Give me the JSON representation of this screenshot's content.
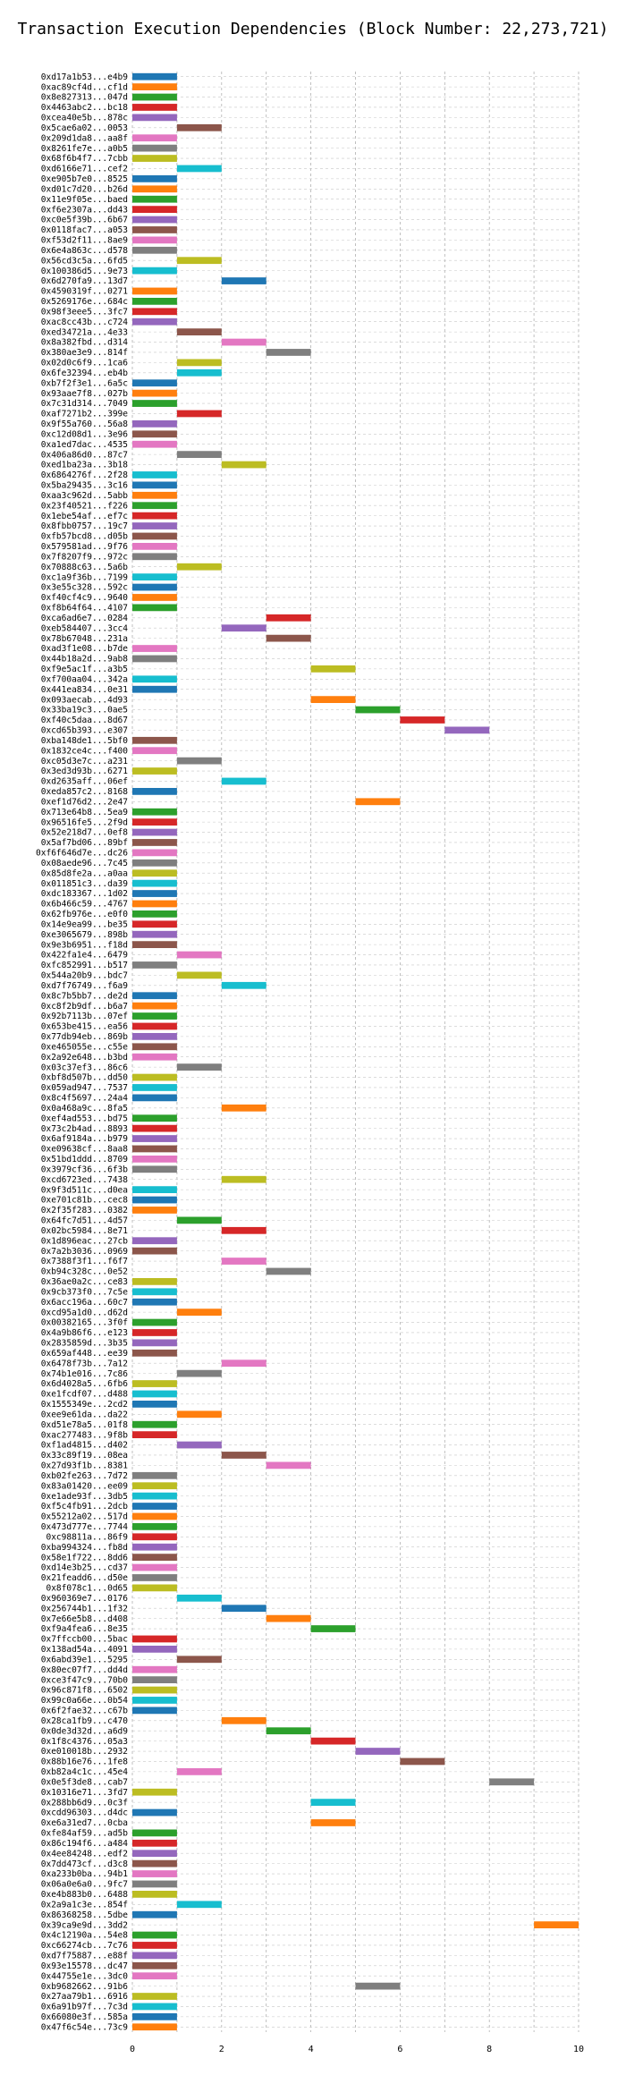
{
  "chart_data": {
    "type": "bar",
    "orientation": "horizontal",
    "title": "Transaction Execution Dependencies (Block Number: 22,273,721)",
    "xlim": [
      0,
      10
    ],
    "x_ticks": [
      0,
      2,
      4,
      6,
      8,
      10
    ],
    "grid": true,
    "colors": [
      "#1f77b4",
      "#ff7f0e",
      "#2ca02c",
      "#d62728",
      "#9467bd",
      "#8c564b",
      "#e377c2",
      "#7f7f7f",
      "#bcbd22",
      "#17becf"
    ],
    "categories": [
      "0xd17a1b53...e4b9",
      "0xac89cf4d...cf1d",
      "0x8e827313...047d",
      "0x4463abc2...bc18",
      "0xcea40e5b...878c",
      "0x5cae6a02...0053",
      "0x209d1da8...aa8f",
      "0x8261fe7e...a0b5",
      "0x68f6b4f7...7cbb",
      "0xd6166e71...cef2",
      "0xe905b7e0...8525",
      "0xd01c7d20...b26d",
      "0x11e9f05e...baed",
      "0xf6e2307a...dd43",
      "0xc0e5f39b...6b67",
      "0x0118fac7...a053",
      "0xf53d2f11...8ae9",
      "0x6e4a863c...d578",
      "0x56cd3c5a...6fd5",
      "0x100386d5...9e73",
      "0x6d270fa9...13d7",
      "0x4590319f...0271",
      "0x5269176e...684c",
      "0x98f3eee5...3fc7",
      "0xac8cc43b...c724",
      "0xed34721a...4e33",
      "0x8a382fbd...d314",
      "0x380ae3e9...814f",
      "0x02d0c6f9...1ca6",
      "0x6fe32394...eb4b",
      "0xb7f2f3e1...6a5c",
      "0x93aae7f8...027b",
      "0x7c31d314...7049",
      "0xaf7271b2...399e",
      "0x9f55a760...56a8",
      "0xc12d08d1...3e96",
      "0xa1ed7dac...4535",
      "0x406a86d0...87c7",
      "0xed1ba23a...3b18",
      "0x6864276f...2f28",
      "0x5ba29435...3c16",
      "0xaa3c962d...5abb",
      "0x23f40521...f226",
      "0x1ebe54af...ef7c",
      "0x8fbb0757...19c7",
      "0xfb57bcd8...d05b",
      "0x579581ad...9f76",
      "0x7f8207f9...972c",
      "0x70888c63...5a6b",
      "0xc1a9f36b...7199",
      "0x3e55c328...592c",
      "0xf40cf4c9...9640",
      "0xf8b64f64...4107",
      "0xca6ad6e7...0284",
      "0xeb584407...3cc4",
      "0x78b67048...231a",
      "0xad3f1e08...b7de",
      "0x44b18a2d...9ab8",
      "0xf9e5ac1f...a3b5",
      "0xf700aa04...342a",
      "0x441ea834...0e31",
      "0x093aecab...4d93",
      "0x33ba19c3...0ae5",
      "0xf40c5daa...8d67",
      "0xcd65b393...e307",
      "0xba148de1...5bf0",
      "0x1832ce4c...f400",
      "0xc05d3e7c...a231",
      "0x3ed3d93b...6271",
      "0xd2635aff...06ef",
      "0xeda857c2...8168",
      "0xef1d76d2...2e47",
      "0x713e64b8...5ea9",
      "0x96516fe5...2f9d",
      "0x52e218d7...0ef8",
      "0x5af7bd06...89bf",
      "0xf6f646d7e...dc26",
      "0x08aede96...7c45",
      "0x85d8fe2a...a0aa",
      "0x011851c3...da39",
      "0xdc183367...1d02",
      "0x6b466c59...4767",
      "0x62fb976e...e0f0",
      "0x14e9ea99...be35",
      "0xe3065679...898b",
      "0x9e3b6951...f18d",
      "0x422fa1e4...6479",
      "0xfc852991...b517",
      "0x544a20b9...bdc7",
      "0xd7f76749...f6a9",
      "0x8c7b5bb7...de2d",
      "0xc8f2b9df...b6a7",
      "0x92b7113b...07ef",
      "0x653be415...ea56",
      "0x77db94eb...869b",
      "0xe465055e...c55e",
      "0x2a92e648...b3bd",
      "0x03c37ef3...86c6",
      "0xbf8d507b...dd50",
      "0x059ad947...7537",
      "0x8c4f5697...24a4",
      "0x0a468a9c...8fa5",
      "0xef4ad553...bd75",
      "0x73c2b4ad...8893",
      "0x6af9184a...b979",
      "0xe09638cf...8aa8",
      "0x51bd1ddd...8709",
      "0x3979cf36...6f3b",
      "0xcd6723ed...7438",
      "0x9f3d511c...d0ea",
      "0xe701c81b...cec8",
      "0x2f35f283...0382",
      "0x64fc7d51...4d57",
      "0x02bc5984...8e71",
      "0x1d896eac...27cb",
      "0x7a2b3036...0969",
      "0x7388f3f1...f6f7",
      "0xb94c328c...0e52",
      "0x36ae0a2c...ce83",
      "0x9cb373f0...7c5e",
      "0x6acc196a...60c7",
      "0xcd95a1d0...d62d",
      "0x00382165...3f0f",
      "0x4a9b86f6...e123",
      "0x2835859d...3b35",
      "0x659af448...ee39",
      "0x6478f73b...7a12",
      "0x74b1e016...7c86",
      "0x6d4028a5...6fb6",
      "0xe1fcdf07...d488",
      "0x1555349e...2cd2",
      "0xee9e61da...da22",
      "0xd51e78a5...01f8",
      "0xac277483...9f8b",
      "0xf1ad4815...d402",
      "0x33c89f19...08ea",
      "0x27d93f1b...8381",
      "0xb02fe263...7d72",
      "0x83a01420...ee09",
      "0xe1ade93f...3db5",
      "0xf5c4fb91...2dcb",
      "0x55212a02...517d",
      "0x473d777e...7744",
      "0xc98811a...86f9",
      "0xba994324...fb8d",
      "0x58e1f722...8dd6",
      "0xd14e3b25...cd37",
      "0x21feadd6...d50e",
      "0x8f078c1...0d65",
      "0x960369e7...0176",
      "0x256744b1...1f32",
      "0x7e66e5b8...d408",
      "0xf9a4fea6...8e35",
      "0x7ffccb00...5bac",
      "0x138ad54a...4091",
      "0x6abd39e1...5295",
      "0x80ec07f7...dd4d",
      "0xce3f47c9...70b0",
      "0x96c871f8...6502",
      "0x99c0a66e...0b54",
      "0x6f2fae32...c67b",
      "0x28ca1fb9...c470",
      "0x0de3d32d...a6d9",
      "0x1f8c4376...05a3",
      "0xe010018b...2932",
      "0x88b16e76...1fe8",
      "0xb82a4c1c...45e4",
      "0x0e5f3de8...cab7",
      "0x10316e71...3fd7",
      "0x288bb6d9...0c3f",
      "0xcdd96303...d4dc",
      "0xe6a31ed7...0cba",
      "0xfe84af59...ad5b",
      "0x86c194f6...a484",
      "0x4ee84248...edf2",
      "0x7dd473cf...d3c8",
      "0xa233b0ba...94b1",
      "0x06a0e6a0...9fc7",
      "0xe4b883b0...6488",
      "0x2a9a1c3e...854f",
      "0x86368258...5dbe",
      "0x39ca9e9d...3dd2",
      "0x4c12190a...54e8",
      "0xc66274cb...7c76",
      "0xd7f75887...e88f",
      "0x93e15578...dc47",
      "0x44755e1e...3dc0",
      "0xb9682662...91b6",
      "0x27aa79b1...6916",
      "0x6a91b97f...7c3d",
      "0x66080e3f...585a",
      "0x47f6c54e...73c9"
    ],
    "starts": [
      0,
      0,
      0,
      0,
      0,
      1,
      0,
      0,
      0,
      1,
      0,
      0,
      0,
      0,
      0,
      0,
      0,
      0,
      1,
      0,
      2,
      0,
      0,
      0,
      0,
      1,
      2,
      3,
      1,
      1,
      0,
      0,
      0,
      1,
      0,
      0,
      0,
      1,
      2,
      0,
      0,
      0,
      0,
      0,
      0,
      0,
      0,
      0,
      1,
      0,
      0,
      0,
      0,
      3,
      2,
      3,
      0,
      0,
      4,
      0,
      0,
      4,
      5,
      6,
      7,
      0,
      0,
      1,
      0,
      2,
      0,
      5,
      0,
      0,
      0,
      0,
      0,
      0,
      0,
      0,
      0,
      0,
      0,
      0,
      0,
      0,
      1,
      0,
      1,
      2,
      0,
      0,
      0,
      0,
      0,
      0,
      0,
      1,
      0,
      0,
      0,
      2,
      0,
      0,
      0,
      0,
      0,
      0,
      2,
      0,
      0,
      0,
      1,
      2,
      0,
      0,
      2,
      3,
      0,
      0,
      0,
      1,
      0,
      0,
      0,
      0,
      2,
      1,
      0,
      0,
      0,
      1,
      0,
      0,
      1,
      2,
      3,
      0,
      0,
      0,
      0,
      0,
      0,
      0,
      0,
      0,
      0,
      0,
      0,
      1,
      2,
      3,
      4,
      0,
      0,
      1,
      0,
      0,
      0,
      0,
      0,
      2,
      3,
      4,
      5,
      6,
      1,
      8,
      0,
      4,
      0,
      4,
      0,
      0,
      0,
      0,
      0,
      0,
      0,
      1,
      0,
      9,
      0,
      0,
      0,
      0,
      0,
      5,
      0,
      0,
      0,
      0
    ],
    "values": [
      1,
      1,
      1,
      1,
      1,
      1,
      1,
      1,
      1,
      1,
      1,
      1,
      1,
      1,
      1,
      1,
      1,
      1,
      1,
      1,
      1,
      1,
      1,
      1,
      1,
      1,
      1,
      1,
      1,
      1,
      1,
      1,
      1,
      1,
      1,
      1,
      1,
      1,
      1,
      1,
      1,
      1,
      1,
      1,
      1,
      1,
      1,
      1,
      1,
      1,
      1,
      1,
      1,
      1,
      1,
      1,
      1,
      1,
      1,
      1,
      1,
      1,
      1,
      1,
      1,
      1,
      1,
      1,
      1,
      1,
      1,
      1,
      1,
      1,
      1,
      1,
      1,
      1,
      1,
      1,
      1,
      1,
      1,
      1,
      1,
      1,
      1,
      1,
      1,
      1,
      1,
      1,
      1,
      1,
      1,
      1,
      1,
      1,
      1,
      1,
      1,
      1,
      1,
      1,
      1,
      1,
      1,
      1,
      1,
      1,
      1,
      1,
      1,
      1,
      1,
      1,
      1,
      1,
      1,
      1,
      1,
      1,
      1,
      1,
      1,
      1,
      1,
      1,
      1,
      1,
      1,
      1,
      1,
      1,
      1,
      1,
      1,
      1,
      1,
      1,
      1,
      1,
      1,
      1,
      1,
      1,
      1,
      1,
      1,
      1,
      1,
      1,
      1,
      1,
      1,
      1,
      1,
      1,
      1,
      1,
      1,
      1,
      1,
      1,
      1,
      1,
      1,
      1,
      1,
      1,
      1,
      1,
      1,
      1,
      1,
      1,
      1,
      1,
      1,
      1,
      1,
      1,
      1,
      1,
      1,
      1,
      1,
      1,
      1,
      1,
      1,
      1
    ]
  }
}
